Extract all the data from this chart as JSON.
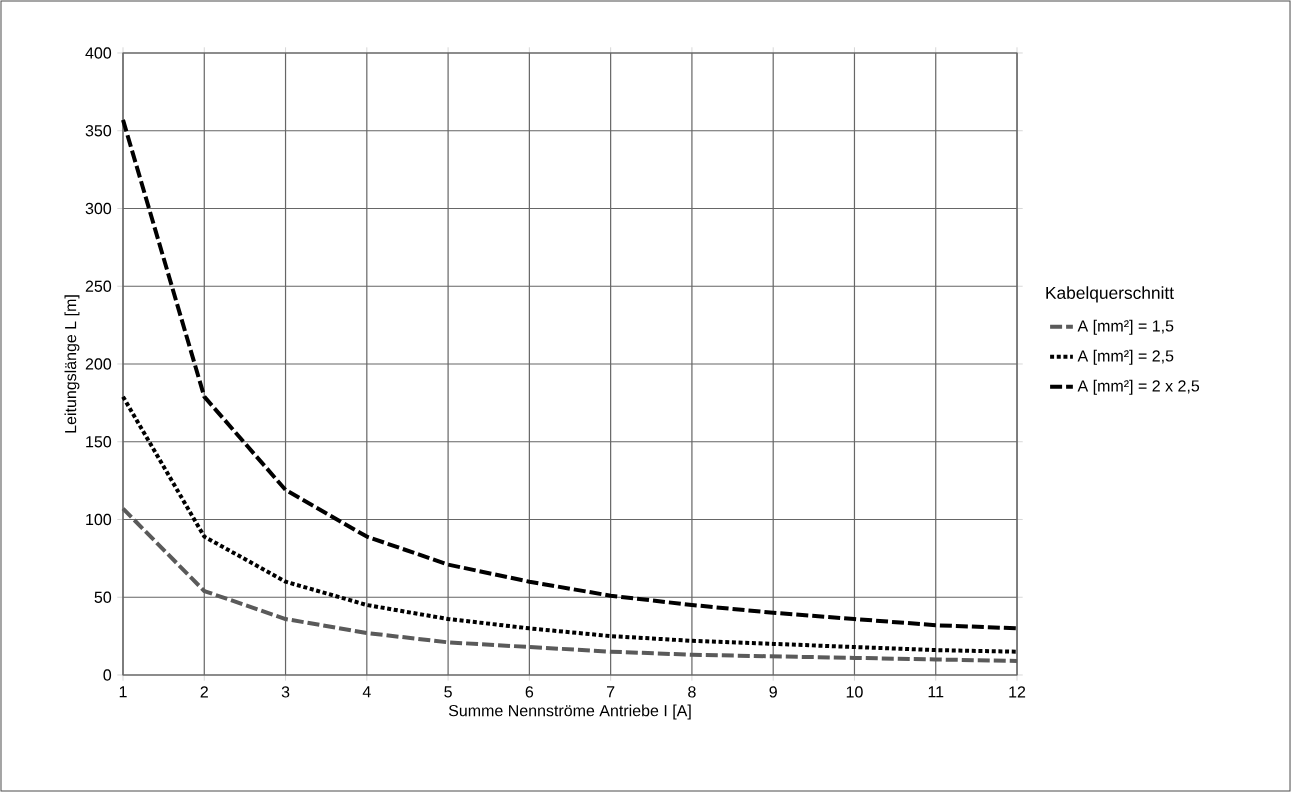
{
  "chart_data": {
    "type": "line",
    "xlabel": "Summe Nennströme Antriebe I [A]",
    "ylabel": "Leitungslänge L [m]",
    "legend_title": "Kabelquerschnitt",
    "x": [
      1,
      2,
      3,
      4,
      5,
      6,
      7,
      8,
      9,
      10,
      11,
      12
    ],
    "series": [
      {
        "name": "A [mm²] = 1,5",
        "color": "#5a5a5a",
        "line_style": "dashed",
        "values": [
          107,
          54,
          36,
          27,
          21,
          18,
          15,
          13,
          12,
          11,
          10,
          9
        ]
      },
      {
        "name": "A [mm²] = 2,5",
        "color": "#000000",
        "line_style": "dotted",
        "values": [
          179,
          89,
          60,
          45,
          36,
          30,
          25,
          22,
          20,
          18,
          16,
          15
        ]
      },
      {
        "name": "A [mm²] = 2 x 2,5",
        "color": "#000000",
        "line_style": "dashed",
        "values": [
          357,
          179,
          119,
          89,
          71,
          60,
          51,
          45,
          40,
          36,
          32,
          30
        ]
      }
    ],
    "xlim": [
      1,
      12
    ],
    "ylim": [
      0,
      400
    ],
    "xticks": [
      1,
      2,
      3,
      4,
      5,
      6,
      7,
      8,
      9,
      10,
      11,
      12
    ],
    "yticks": [
      0,
      50,
      100,
      150,
      200,
      250,
      300,
      350,
      400
    ],
    "grid": true,
    "legend": "right",
    "marker": "none"
  }
}
